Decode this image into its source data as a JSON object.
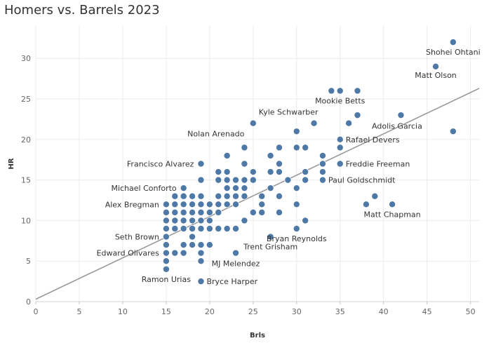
{
  "chart_data": {
    "type": "scatter",
    "title": "Homers vs. Barrels 2023",
    "xlabel": "Brls",
    "ylabel": "HR",
    "xlim": [
      0,
      51
    ],
    "ylim": [
      0,
      34
    ],
    "x_ticks": [
      0,
      5,
      10,
      15,
      20,
      25,
      30,
      35,
      40,
      45,
      50
    ],
    "y_ticks": [
      0,
      5,
      10,
      15,
      20,
      25,
      30
    ],
    "trendline": {
      "x": [
        0,
        51
      ],
      "y": [
        0.3,
        26.3
      ]
    },
    "color": "#4e79a7",
    "trendline_color": "#999999",
    "points": [
      {
        "x": 48,
        "y": 32,
        "label": "Shohei Ohtani"
      },
      {
        "x": 46,
        "y": 29,
        "label": "Matt Olson"
      },
      {
        "x": 34,
        "y": 26,
        "label": ""
      },
      {
        "x": 35,
        "y": 26,
        "label": "Mookie Betts"
      },
      {
        "x": 37,
        "y": 26,
        "label": ""
      },
      {
        "x": 25,
        "y": 22,
        "label": "Kyle Schwarber"
      },
      {
        "x": 37,
        "y": 23,
        "label": ""
      },
      {
        "x": 42,
        "y": 23,
        "label": ""
      },
      {
        "x": 32,
        "y": 22,
        "label": ""
      },
      {
        "x": 36,
        "y": 22,
        "label": ""
      },
      {
        "x": 48,
        "y": 21,
        "label": "Adolis Garcia"
      },
      {
        "x": 30,
        "y": 21,
        "label": ""
      },
      {
        "x": 35,
        "y": 20,
        "label": "Rafael Devers"
      },
      {
        "x": 24,
        "y": 19,
        "label": "Nolan Arenado"
      },
      {
        "x": 28,
        "y": 19,
        "label": ""
      },
      {
        "x": 30,
        "y": 19,
        "label": ""
      },
      {
        "x": 31,
        "y": 19,
        "label": ""
      },
      {
        "x": 35,
        "y": 19,
        "label": ""
      },
      {
        "x": 22,
        "y": 18,
        "label": ""
      },
      {
        "x": 27,
        "y": 18,
        "label": ""
      },
      {
        "x": 33,
        "y": 18,
        "label": ""
      },
      {
        "x": 19,
        "y": 17,
        "label": "Francisco Alvarez"
      },
      {
        "x": 24,
        "y": 17,
        "label": ""
      },
      {
        "x": 28,
        "y": 17,
        "label": ""
      },
      {
        "x": 33,
        "y": 17,
        "label": ""
      },
      {
        "x": 35,
        "y": 17,
        "label": "Freddie Freeman"
      },
      {
        "x": 21,
        "y": 16,
        "label": ""
      },
      {
        "x": 22,
        "y": 16,
        "label": ""
      },
      {
        "x": 25,
        "y": 16,
        "label": ""
      },
      {
        "x": 27,
        "y": 16,
        "label": ""
      },
      {
        "x": 28,
        "y": 16,
        "label": ""
      },
      {
        "x": 31,
        "y": 16,
        "label": ""
      },
      {
        "x": 33,
        "y": 16,
        "label": ""
      },
      {
        "x": 19,
        "y": 15,
        "label": ""
      },
      {
        "x": 21,
        "y": 15,
        "label": ""
      },
      {
        "x": 22,
        "y": 15,
        "label": ""
      },
      {
        "x": 23,
        "y": 15,
        "label": ""
      },
      {
        "x": 24,
        "y": 15,
        "label": ""
      },
      {
        "x": 25,
        "y": 15,
        "label": ""
      },
      {
        "x": 29,
        "y": 15,
        "label": ""
      },
      {
        "x": 31,
        "y": 15,
        "label": ""
      },
      {
        "x": 33,
        "y": 15,
        "label": "Paul Goldschmidt"
      },
      {
        "x": 17,
        "y": 14,
        "label": "Michael Conforto"
      },
      {
        "x": 22,
        "y": 14,
        "label": ""
      },
      {
        "x": 23,
        "y": 14,
        "label": ""
      },
      {
        "x": 24,
        "y": 14,
        "label": ""
      },
      {
        "x": 27,
        "y": 14,
        "label": ""
      },
      {
        "x": 30,
        "y": 14,
        "label": ""
      },
      {
        "x": 16,
        "y": 13,
        "label": ""
      },
      {
        "x": 17,
        "y": 13,
        "label": ""
      },
      {
        "x": 18,
        "y": 13,
        "label": ""
      },
      {
        "x": 19,
        "y": 13,
        "label": ""
      },
      {
        "x": 21,
        "y": 13,
        "label": ""
      },
      {
        "x": 22,
        "y": 13,
        "label": ""
      },
      {
        "x": 23,
        "y": 13,
        "label": ""
      },
      {
        "x": 24,
        "y": 13,
        "label": ""
      },
      {
        "x": 26,
        "y": 13,
        "label": ""
      },
      {
        "x": 28,
        "y": 13,
        "label": ""
      },
      {
        "x": 39,
        "y": 13,
        "label": ""
      },
      {
        "x": 15,
        "y": 12,
        "label": "Alex Bregman"
      },
      {
        "x": 16,
        "y": 12,
        "label": ""
      },
      {
        "x": 17,
        "y": 12,
        "label": ""
      },
      {
        "x": 18,
        "y": 12,
        "label": ""
      },
      {
        "x": 19,
        "y": 12,
        "label": ""
      },
      {
        "x": 20,
        "y": 12,
        "label": ""
      },
      {
        "x": 21,
        "y": 12,
        "label": ""
      },
      {
        "x": 22,
        "y": 12,
        "label": ""
      },
      {
        "x": 23,
        "y": 12,
        "label": ""
      },
      {
        "x": 26,
        "y": 12,
        "label": ""
      },
      {
        "x": 30,
        "y": 12,
        "label": ""
      },
      {
        "x": 38,
        "y": 12,
        "label": ""
      },
      {
        "x": 41,
        "y": 12,
        "label": "Matt Chapman"
      },
      {
        "x": 15,
        "y": 11,
        "label": ""
      },
      {
        "x": 16,
        "y": 11,
        "label": ""
      },
      {
        "x": 17,
        "y": 11,
        "label": ""
      },
      {
        "x": 18,
        "y": 11,
        "label": ""
      },
      {
        "x": 19,
        "y": 11,
        "label": ""
      },
      {
        "x": 20,
        "y": 11,
        "label": ""
      },
      {
        "x": 21,
        "y": 11,
        "label": ""
      },
      {
        "x": 25,
        "y": 11,
        "label": ""
      },
      {
        "x": 26,
        "y": 11,
        "label": ""
      },
      {
        "x": 28,
        "y": 11,
        "label": ""
      },
      {
        "x": 15,
        "y": 10,
        "label": ""
      },
      {
        "x": 16,
        "y": 10,
        "label": ""
      },
      {
        "x": 17,
        "y": 10,
        "label": ""
      },
      {
        "x": 18,
        "y": 10,
        "label": ""
      },
      {
        "x": 19,
        "y": 10,
        "label": ""
      },
      {
        "x": 20,
        "y": 10,
        "label": ""
      },
      {
        "x": 24,
        "y": 10,
        "label": ""
      },
      {
        "x": 31,
        "y": 10,
        "label": ""
      },
      {
        "x": 15,
        "y": 9,
        "label": ""
      },
      {
        "x": 16,
        "y": 9,
        "label": ""
      },
      {
        "x": 17,
        "y": 9,
        "label": ""
      },
      {
        "x": 18,
        "y": 9,
        "label": ""
      },
      {
        "x": 19,
        "y": 9,
        "label": ""
      },
      {
        "x": 20,
        "y": 9,
        "label": ""
      },
      {
        "x": 21,
        "y": 9,
        "label": ""
      },
      {
        "x": 22,
        "y": 9,
        "label": ""
      },
      {
        "x": 23,
        "y": 9,
        "label": ""
      },
      {
        "x": 30,
        "y": 9,
        "label": "Bryan Reynolds"
      },
      {
        "x": 15,
        "y": 8,
        "label": "Seth Brown"
      },
      {
        "x": 18,
        "y": 8,
        "label": ""
      },
      {
        "x": 27,
        "y": 8,
        "label": "Trent Grisham"
      },
      {
        "x": 15,
        "y": 7,
        "label": ""
      },
      {
        "x": 17,
        "y": 7,
        "label": ""
      },
      {
        "x": 18,
        "y": 7,
        "label": ""
      },
      {
        "x": 19,
        "y": 7,
        "label": ""
      },
      {
        "x": 20,
        "y": 7,
        "label": ""
      },
      {
        "x": 15,
        "y": 6,
        "label": "Edward Olivares"
      },
      {
        "x": 16,
        "y": 6,
        "label": ""
      },
      {
        "x": 17,
        "y": 6,
        "label": ""
      },
      {
        "x": 19,
        "y": 6,
        "label": ""
      },
      {
        "x": 23,
        "y": 6,
        "label": "MJ Melendez"
      },
      {
        "x": 15,
        "y": 5,
        "label": ""
      },
      {
        "x": 19,
        "y": 5,
        "label": ""
      },
      {
        "x": 15,
        "y": 4,
        "label": "Ramon Urias"
      },
      {
        "x": 19,
        "y": 2.5,
        "label": "Bryce Harper"
      }
    ]
  }
}
